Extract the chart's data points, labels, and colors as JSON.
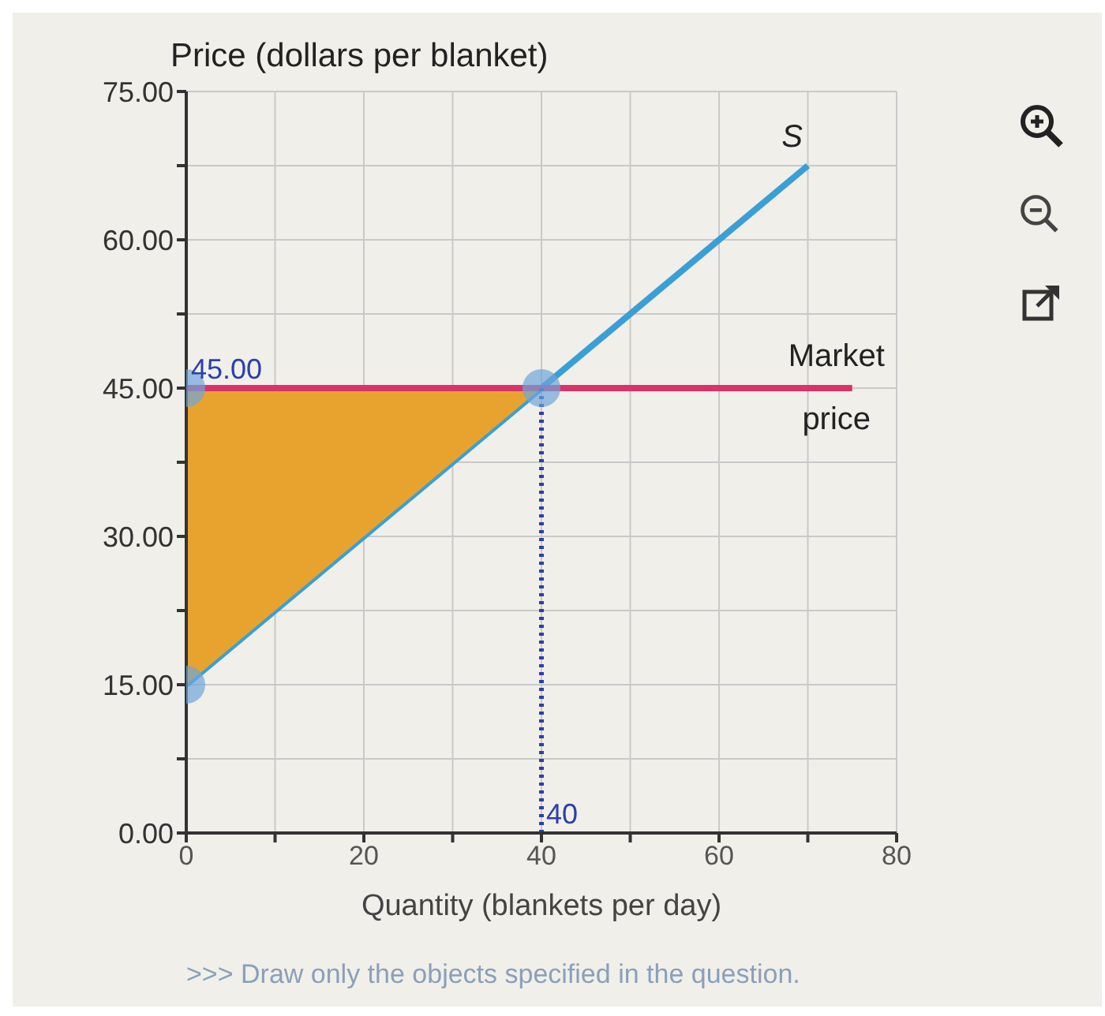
{
  "chart_data": {
    "type": "line",
    "ylabel": "Price (dollars per blanket)",
    "xlabel": "Quantity (blankets per day)",
    "xlim": [
      0,
      80
    ],
    "xticks": [
      0,
      {
        "value": 10,
        "label": null
      },
      20,
      {
        "value": 30,
        "label": null
      },
      40,
      {
        "value": 50,
        "label": null
      },
      60,
      {
        "value": 70,
        "label": null
      },
      80
    ],
    "ylim": [
      0,
      75
    ],
    "yticks": [
      {
        "value": 0,
        "label": "0.00"
      },
      {
        "value": 7.5,
        "label": null
      },
      {
        "value": 15,
        "label": "15.00"
      },
      {
        "value": 22.5,
        "label": null
      },
      {
        "value": 30,
        "label": "30.00"
      },
      {
        "value": 37.5,
        "label": null
      },
      {
        "value": 45,
        "label": "45.00"
      },
      {
        "value": 52.5,
        "label": null
      },
      {
        "value": 60,
        "label": "60.00"
      },
      {
        "value": 67.5,
        "label": null
      },
      {
        "value": 75,
        "label": "75.00"
      }
    ],
    "grid": true,
    "legend": false,
    "series": [
      {
        "name": "S",
        "color": "#3a9fd6",
        "x": [
          0,
          40,
          70
        ],
        "values": [
          15,
          45,
          67.5
        ],
        "lower": [
          15,
          45,
          null
        ],
        "upper": [
          45,
          45,
          null
        ]
      },
      {
        "name": "Market price",
        "color": "#d8336b",
        "x": [
          0,
          75
        ],
        "values": [
          45,
          45
        ]
      },
      {
        "color": "#2b3fae",
        "line_style": "dotted",
        "x": [
          40,
          40
        ],
        "values": [
          0,
          45
        ]
      },
      {
        "type": "scatter",
        "color": "#6fa5d8",
        "marker": "circle",
        "x": [
          0,
          0,
          40
        ],
        "values": [
          45,
          15,
          45
        ]
      }
    ],
    "annotations": [
      {
        "text": "45.00",
        "x": 0,
        "y": 45
      },
      {
        "text": "40",
        "x": 40,
        "y": 0
      },
      ">>> Draw only the objects specified in the question."
    ]
  }
}
